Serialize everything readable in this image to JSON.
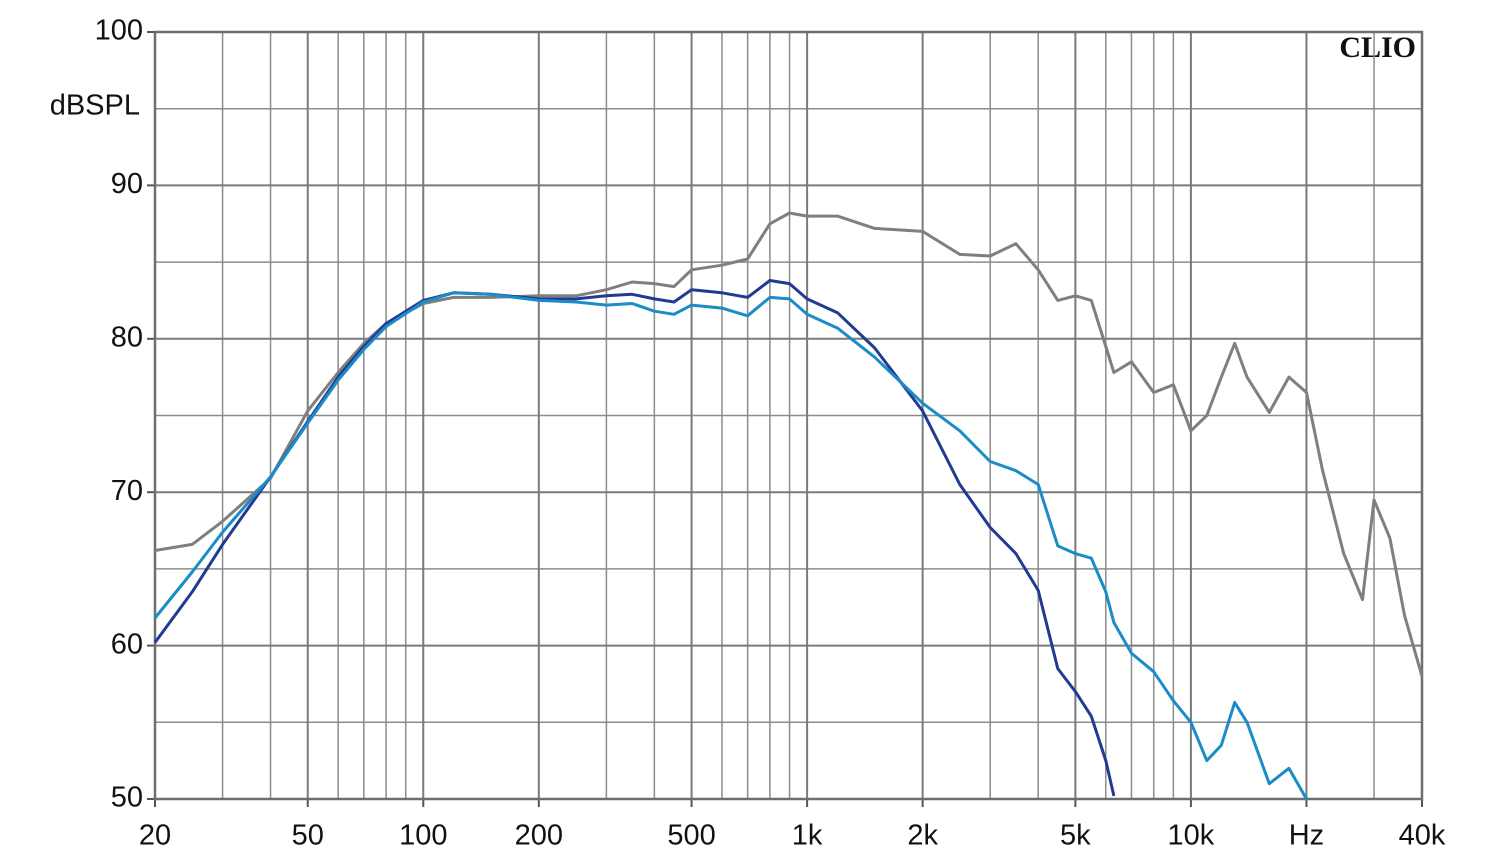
{
  "chart_data": {
    "type": "line",
    "ylabel": "dBSPL",
    "annotation": "CLIO",
    "xscale": "log",
    "grid": true,
    "xlim": [
      20,
      40000
    ],
    "ylim": [
      50,
      100
    ],
    "xticks": [
      20,
      50,
      100,
      200,
      500,
      {
        "value": 1000,
        "label": "1k"
      },
      {
        "value": 2000,
        "label": "2k"
      },
      {
        "value": 5000,
        "label": "5k"
      },
      {
        "value": 10000,
        "label": "10k"
      },
      {
        "value": 20000,
        "label": "Hz"
      },
      {
        "value": 40000,
        "label": "40k"
      }
    ],
    "x_minor_ticks": [
      30,
      40,
      60,
      70,
      80,
      90,
      300,
      400,
      600,
      700,
      800,
      900,
      3000,
      4000,
      6000,
      7000,
      8000,
      9000,
      30000
    ],
    "yticks": [
      50,
      60,
      70,
      80,
      90,
      100
    ],
    "y_minor_ticks": [
      55,
      65,
      75,
      85,
      95
    ],
    "x": [
      20,
      25,
      30,
      40,
      50,
      60,
      70,
      80,
      100,
      120,
      150,
      200,
      250,
      300,
      350,
      400,
      450,
      500,
      600,
      700,
      800,
      900,
      1000,
      1200,
      1500,
      2000,
      2500,
      3000,
      3500,
      4000,
      4500,
      5000,
      5500,
      6000,
      6300,
      7000,
      8000,
      9000,
      10000,
      11000,
      12000,
      13000,
      14000,
      16000,
      18000,
      20000,
      22000,
      25000,
      28000,
      30000,
      33000,
      36000,
      40000
    ],
    "series": [
      {
        "color": "#7f7f7f",
        "values": [
          66.2,
          66.6,
          68.1,
          70.9,
          75.3,
          77.8,
          79.7,
          81.0,
          82.3,
          82.7,
          82.7,
          82.8,
          82.8,
          83.2,
          83.7,
          83.6,
          83.4,
          84.5,
          84.8,
          85.2,
          87.5,
          88.2,
          88.0,
          88.0,
          87.2,
          87.0,
          85.5,
          85.4,
          86.2,
          84.5,
          82.5,
          82.8,
          82.5,
          79.5,
          77.8,
          78.5,
          76.5,
          77.0,
          74.0,
          75.0,
          77.5,
          79.7,
          77.5,
          75.2,
          77.5,
          76.5,
          71.5,
          66.0,
          63.0,
          69.5,
          67.0,
          62.0,
          58.0
        ]
      },
      {
        "color": "#233a92",
        "values": [
          60.2,
          63.5,
          66.6,
          71.0,
          74.6,
          77.5,
          79.5,
          81.0,
          82.5,
          83.0,
          82.9,
          82.6,
          82.6,
          82.8,
          82.9,
          82.6,
          82.4,
          83.2,
          83.0,
          82.7,
          83.8,
          83.6,
          82.6,
          81.7,
          79.4,
          75.3,
          70.5,
          67.7,
          66.0,
          63.6,
          58.5,
          57.0,
          55.4,
          52.5,
          50.2,
          null,
          null,
          null,
          null,
          null,
          null,
          null,
          null,
          null,
          null,
          null,
          null,
          null,
          null,
          null,
          null,
          null,
          null
        ]
      },
      {
        "color": "#1a8dc8",
        "values": [
          61.8,
          64.8,
          67.4,
          71.0,
          74.5,
          77.3,
          79.3,
          80.8,
          82.4,
          83.0,
          82.9,
          82.5,
          82.4,
          82.2,
          82.3,
          81.8,
          81.6,
          82.2,
          82.0,
          81.5,
          82.7,
          82.6,
          81.6,
          80.7,
          78.8,
          75.8,
          74.0,
          72.0,
          71.4,
          70.5,
          66.5,
          66.0,
          65.7,
          63.5,
          61.5,
          59.5,
          58.3,
          56.4,
          55.0,
          52.5,
          53.5,
          56.3,
          55.0,
          51.0,
          52.0,
          50.0,
          null,
          null,
          null,
          null,
          null,
          null,
          null
        ]
      }
    ]
  }
}
